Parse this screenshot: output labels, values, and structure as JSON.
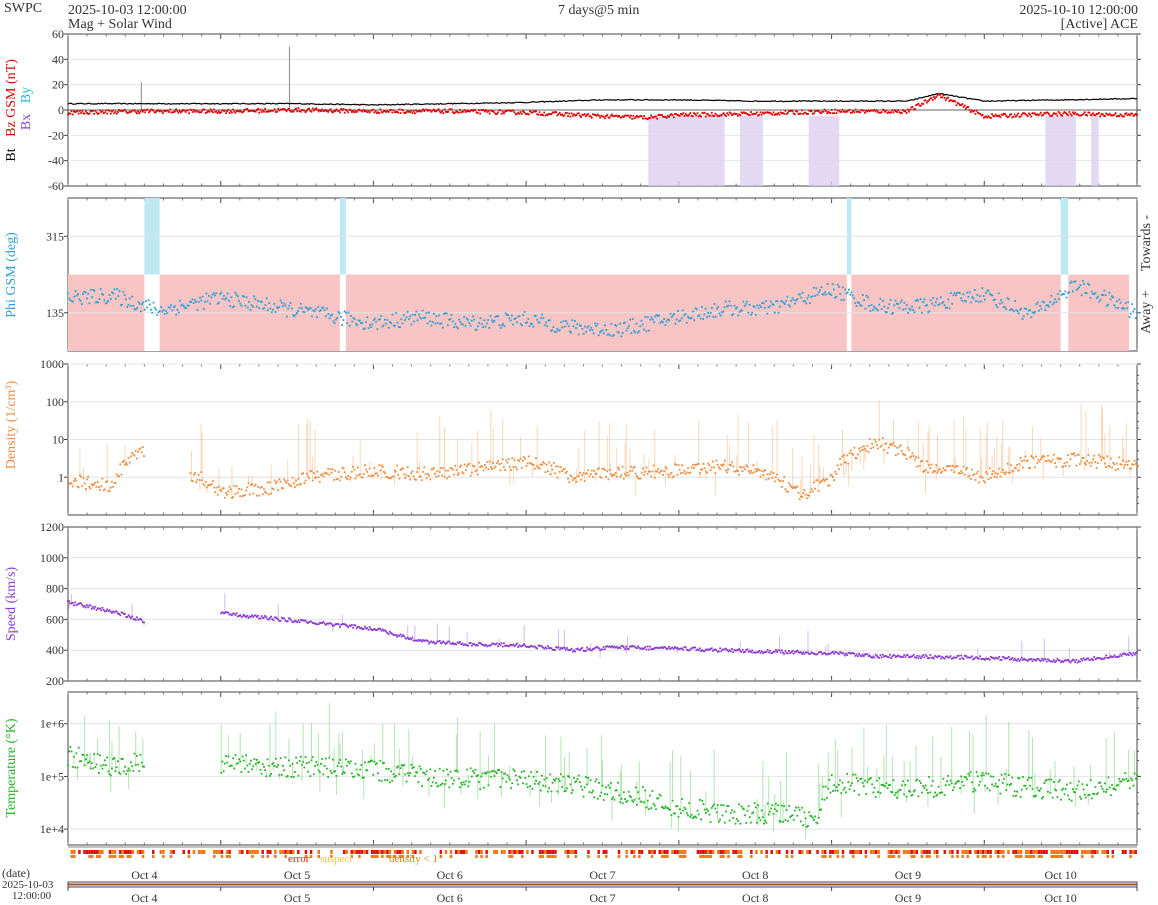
{
  "header": {
    "agency": "SWPC",
    "start_time": "2025-10-03 12:00:00",
    "subtitle": "Mag + Solar Wind",
    "span": "7 days@5 min",
    "end_time": "2025-10-10 12:00:00",
    "source": "[Active] ACE"
  },
  "colors": {
    "bt": "#000000",
    "bz": "#e00000",
    "bx": "#8b3fd6",
    "by": "#1fb8e0",
    "phi": "#2a9fd6",
    "density": "#f08c3c",
    "speed": "#8a3ad0",
    "temperature": "#22b422",
    "phi_away_band": "#f9c4c4",
    "phi_towards_band": "#bfe8f5",
    "bz_south_band": "#ddd0ef",
    "quality_error": "#e01010",
    "quality_suspect": "#f5d000",
    "quality_density": "#f07818"
  },
  "x_axis": {
    "label": "(date)",
    "start_label": "2025-10-03",
    "start_time_label": "12:00:00",
    "day_labels": [
      "Oct 4",
      "Oct 5",
      "Oct 6",
      "Oct 7",
      "Oct 8",
      "Oct 9",
      "Oct 10"
    ]
  },
  "quality_legend": {
    "error": "error",
    "suspect": "suspect",
    "density": "density < 1"
  },
  "chart_data": [
    {
      "type": "line",
      "id": "mag",
      "ylabel": "Bz GSM (nT)",
      "ylabel_parts": [
        "Bt",
        "Bz GSM (nT)",
        "Bx",
        "By"
      ],
      "ylim": [
        -60,
        60
      ],
      "yticks": [
        -60,
        -40,
        -20,
        0,
        20,
        40,
        60
      ],
      "x_unit": "days since 2025-10-03 12:00",
      "xlim": [
        0,
        7
      ],
      "series": [
        {
          "name": "Bt",
          "x": [
            0,
            0.5,
            1,
            1.5,
            2,
            2.5,
            3,
            3.5,
            4,
            4.5,
            5,
            5.5,
            5.7,
            6,
            6.5,
            7
          ],
          "values": [
            5,
            5,
            5,
            5,
            4,
            5,
            6,
            8,
            8,
            7,
            7,
            7,
            13,
            7,
            8,
            9
          ]
        },
        {
          "name": "Bz",
          "x": [
            0,
            0.5,
            1,
            1.5,
            2,
            2.5,
            3,
            3.5,
            3.8,
            4,
            4.5,
            5,
            5.5,
            5.7,
            6,
            6.5,
            7
          ],
          "values": [
            -2,
            -1,
            -1,
            0,
            -1,
            -1,
            -2,
            -5,
            -6,
            -4,
            -3,
            -1,
            -1,
            12,
            -5,
            -3,
            -4
          ]
        }
      ],
      "spikes": [
        {
          "x": 0.48,
          "value": 22
        },
        {
          "x": 1.45,
          "value": 50
        }
      ],
      "south_bz_bands": [
        [
          3.8,
          4.3
        ],
        [
          4.4,
          4.55
        ],
        [
          4.85,
          5.05
        ],
        [
          6.4,
          6.6
        ],
        [
          6.7,
          6.75
        ]
      ]
    },
    {
      "type": "scatter",
      "id": "phi",
      "ylabel": "Phi GSM (deg)",
      "side_labels": [
        "Towards -",
        "Away +"
      ],
      "ylim": [
        45,
        405
      ],
      "yticks": [
        135,
        315
      ],
      "y_away_max": 225,
      "x_unit": "days since 2025-10-03 12:00",
      "xlim": [
        0,
        7
      ],
      "x": [
        0,
        0.3,
        0.6,
        1,
        1.5,
        2,
        2.3,
        2.6,
        3,
        3.3,
        3.6,
        4,
        4.3,
        4.6,
        5,
        5.3,
        5.6,
        6,
        6.3,
        6.6,
        7
      ],
      "values": [
        170,
        175,
        140,
        170,
        140,
        110,
        125,
        110,
        120,
        100,
        95,
        125,
        145,
        145,
        190,
        150,
        150,
        180,
        130,
        200,
        135
      ],
      "towards_bands": [
        [
          0.5,
          0.6
        ],
        [
          1.78,
          1.82
        ],
        [
          5.1,
          5.13
        ],
        [
          6.5,
          6.55
        ]
      ]
    },
    {
      "type": "scatter",
      "id": "density",
      "ylabel": "Density (1/cm³)",
      "scale": "log",
      "ylim": [
        0.1,
        1000
      ],
      "ytick_labels": [
        "1",
        "10",
        "100",
        "1000"
      ],
      "x_unit": "days since 2025-10-03 12:00",
      "xlim": [
        0,
        7
      ],
      "x": [
        0,
        0.3,
        0.5,
        0.6,
        0.8,
        1,
        1.3,
        1.6,
        2,
        2.3,
        2.6,
        3,
        3.3,
        3.6,
        4,
        4.3,
        4.6,
        4.8,
        5,
        5.3,
        5.6,
        6,
        6.3,
        6.6,
        7
      ],
      "values": [
        0.8,
        0.6,
        5,
        null,
        1.2,
        0.4,
        0.5,
        1,
        1.5,
        1.2,
        1.5,
        2.5,
        1,
        1.3,
        1.5,
        2,
        1,
        0.3,
        0.8,
        8,
        2,
        1,
        2.5,
        3,
        2
      ]
    },
    {
      "type": "scatter",
      "id": "speed",
      "ylabel": "Speed (km/s)",
      "ylim": [
        200,
        1200
      ],
      "yticks": [
        200,
        400,
        600,
        800,
        1000,
        1200
      ],
      "x_unit": "days since 2025-10-03 12:00",
      "xlim": [
        0,
        7
      ],
      "x": [
        0,
        0.3,
        0.5,
        0.6,
        1,
        1.3,
        1.6,
        2,
        2.3,
        2.6,
        3,
        3.3,
        3.6,
        4,
        4.3,
        4.6,
        5,
        5.3,
        5.6,
        6,
        6.3,
        6.6,
        7
      ],
      "values": [
        710,
        650,
        590,
        null,
        640,
        610,
        580,
        540,
        460,
        440,
        430,
        400,
        420,
        410,
        400,
        390,
        380,
        360,
        360,
        350,
        340,
        330,
        380
      ]
    },
    {
      "type": "scatter",
      "id": "temperature",
      "ylabel": "Temperature (°K)",
      "scale": "log",
      "ylim": [
        5000,
        4000000
      ],
      "ytick_labels": [
        "1e+4",
        "1e+5",
        "1e+6"
      ],
      "x_unit": "days since 2025-10-03 12:00",
      "xlim": [
        0,
        7
      ],
      "x": [
        0,
        0.3,
        0.5,
        0.6,
        1,
        1.3,
        1.6,
        2,
        2.3,
        2.6,
        3,
        3.3,
        3.6,
        4,
        4.3,
        4.6,
        4.9,
        5,
        5.3,
        5.6,
        6,
        6.3,
        6.6,
        7
      ],
      "values": [
        250000,
        150000,
        200000,
        null,
        180000,
        150000,
        150000,
        130000,
        100000,
        90000,
        90000,
        70000,
        50000,
        25000,
        20000,
        20000,
        15000,
        80000,
        60000,
        60000,
        80000,
        60000,
        50000,
        80000
      ]
    }
  ]
}
